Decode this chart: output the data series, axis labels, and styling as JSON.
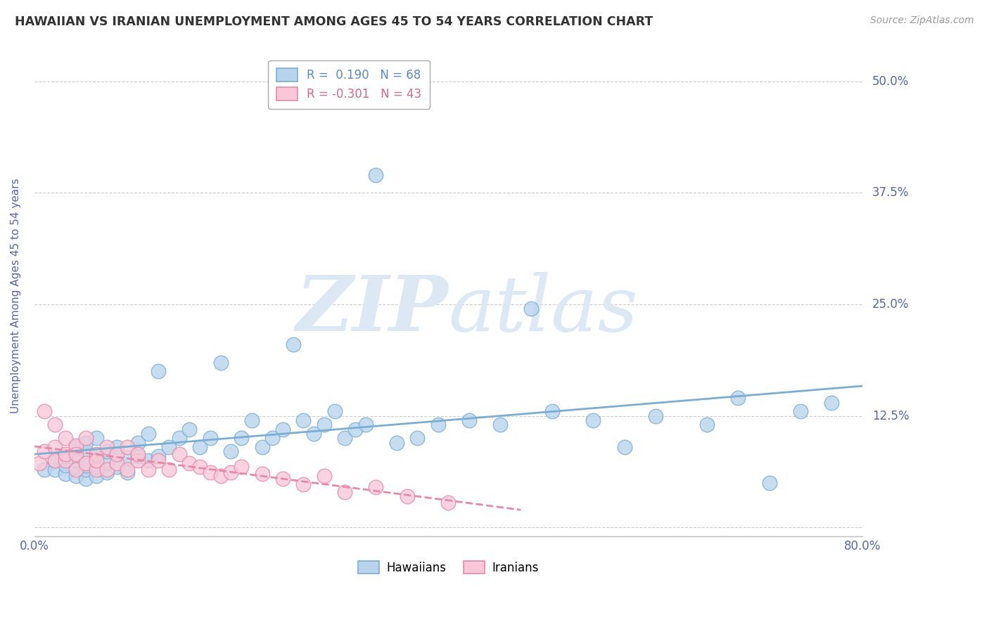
{
  "title": "HAWAIIAN VS IRANIAN UNEMPLOYMENT AMONG AGES 45 TO 54 YEARS CORRELATION CHART",
  "source": "Source: ZipAtlas.com",
  "ylabel": "Unemployment Among Ages 45 to 54 years",
  "xlim": [
    0.0,
    0.8
  ],
  "ylim": [
    -0.01,
    0.53
  ],
  "xticks": [
    0.0,
    0.1,
    0.2,
    0.3,
    0.4,
    0.5,
    0.6,
    0.7,
    0.8
  ],
  "yticks": [
    0.0,
    0.125,
    0.25,
    0.375,
    0.5
  ],
  "ytick_labels": [
    "",
    "12.5%",
    "25.0%",
    "37.5%",
    "50.0%"
  ],
  "xtick_labels": [
    "0.0%",
    "",
    "",
    "",
    "",
    "",
    "",
    "",
    "80.0%"
  ],
  "hawaiian_R": 0.19,
  "hawaiian_N": 68,
  "iranian_R": -0.301,
  "iranian_N": 43,
  "hawaiian_color": "#b8d4ec",
  "hawaiian_edge_color": "#7aaed4",
  "iranian_color": "#f8c8d8",
  "iranian_edge_color": "#e888a8",
  "trend_hawaiian_color": "#7aaed4",
  "trend_iranian_color": "#e888a8",
  "background_color": "#ffffff",
  "grid_color": "#cccccc",
  "title_color": "#333333",
  "axis_label_color": "#5566aa",
  "tick_color": "#5566aa",
  "watermark_color": "#dde8f5",
  "hawaiian_x": [
    0.01,
    0.02,
    0.02,
    0.03,
    0.03,
    0.03,
    0.04,
    0.04,
    0.04,
    0.04,
    0.05,
    0.05,
    0.05,
    0.05,
    0.05,
    0.06,
    0.06,
    0.06,
    0.06,
    0.07,
    0.07,
    0.07,
    0.08,
    0.08,
    0.09,
    0.09,
    0.1,
    0.1,
    0.11,
    0.11,
    0.12,
    0.12,
    0.13,
    0.14,
    0.15,
    0.16,
    0.17,
    0.18,
    0.19,
    0.2,
    0.21,
    0.22,
    0.23,
    0.24,
    0.25,
    0.26,
    0.27,
    0.28,
    0.29,
    0.3,
    0.31,
    0.32,
    0.33,
    0.35,
    0.37,
    0.39,
    0.42,
    0.45,
    0.48,
    0.5,
    0.54,
    0.57,
    0.6,
    0.65,
    0.68,
    0.71,
    0.74,
    0.77
  ],
  "hawaiian_y": [
    0.065,
    0.065,
    0.075,
    0.06,
    0.07,
    0.08,
    0.058,
    0.068,
    0.075,
    0.09,
    0.055,
    0.065,
    0.07,
    0.085,
    0.095,
    0.058,
    0.068,
    0.078,
    0.1,
    0.062,
    0.072,
    0.085,
    0.068,
    0.09,
    0.062,
    0.078,
    0.08,
    0.095,
    0.075,
    0.105,
    0.08,
    0.175,
    0.09,
    0.1,
    0.11,
    0.09,
    0.1,
    0.185,
    0.085,
    0.1,
    0.12,
    0.09,
    0.1,
    0.11,
    0.205,
    0.12,
    0.105,
    0.115,
    0.13,
    0.1,
    0.11,
    0.115,
    0.395,
    0.095,
    0.1,
    0.115,
    0.12,
    0.115,
    0.245,
    0.13,
    0.12,
    0.09,
    0.125,
    0.115,
    0.145,
    0.05,
    0.13,
    0.14
  ],
  "iranian_x": [
    0.005,
    0.01,
    0.01,
    0.02,
    0.02,
    0.02,
    0.03,
    0.03,
    0.03,
    0.04,
    0.04,
    0.04,
    0.05,
    0.05,
    0.06,
    0.06,
    0.06,
    0.07,
    0.07,
    0.08,
    0.08,
    0.09,
    0.09,
    0.1,
    0.1,
    0.11,
    0.12,
    0.13,
    0.14,
    0.15,
    0.16,
    0.17,
    0.18,
    0.19,
    0.2,
    0.22,
    0.24,
    0.26,
    0.28,
    0.3,
    0.33,
    0.36,
    0.4
  ],
  "iranian_y": [
    0.072,
    0.13,
    0.085,
    0.09,
    0.075,
    0.115,
    0.1,
    0.075,
    0.082,
    0.065,
    0.092,
    0.082,
    0.072,
    0.1,
    0.065,
    0.082,
    0.075,
    0.09,
    0.065,
    0.072,
    0.082,
    0.065,
    0.09,
    0.075,
    0.082,
    0.065,
    0.075,
    0.065,
    0.082,
    0.072,
    0.068,
    0.062,
    0.058,
    0.062,
    0.068,
    0.06,
    0.055,
    0.048,
    0.058,
    0.04,
    0.045,
    0.035,
    0.028
  ],
  "legend_r_haw_color": "#5588cc",
  "legend_n_haw_color": "#5588cc",
  "legend_r_ira_color": "#dd6688",
  "legend_n_ira_color": "#dd6688"
}
